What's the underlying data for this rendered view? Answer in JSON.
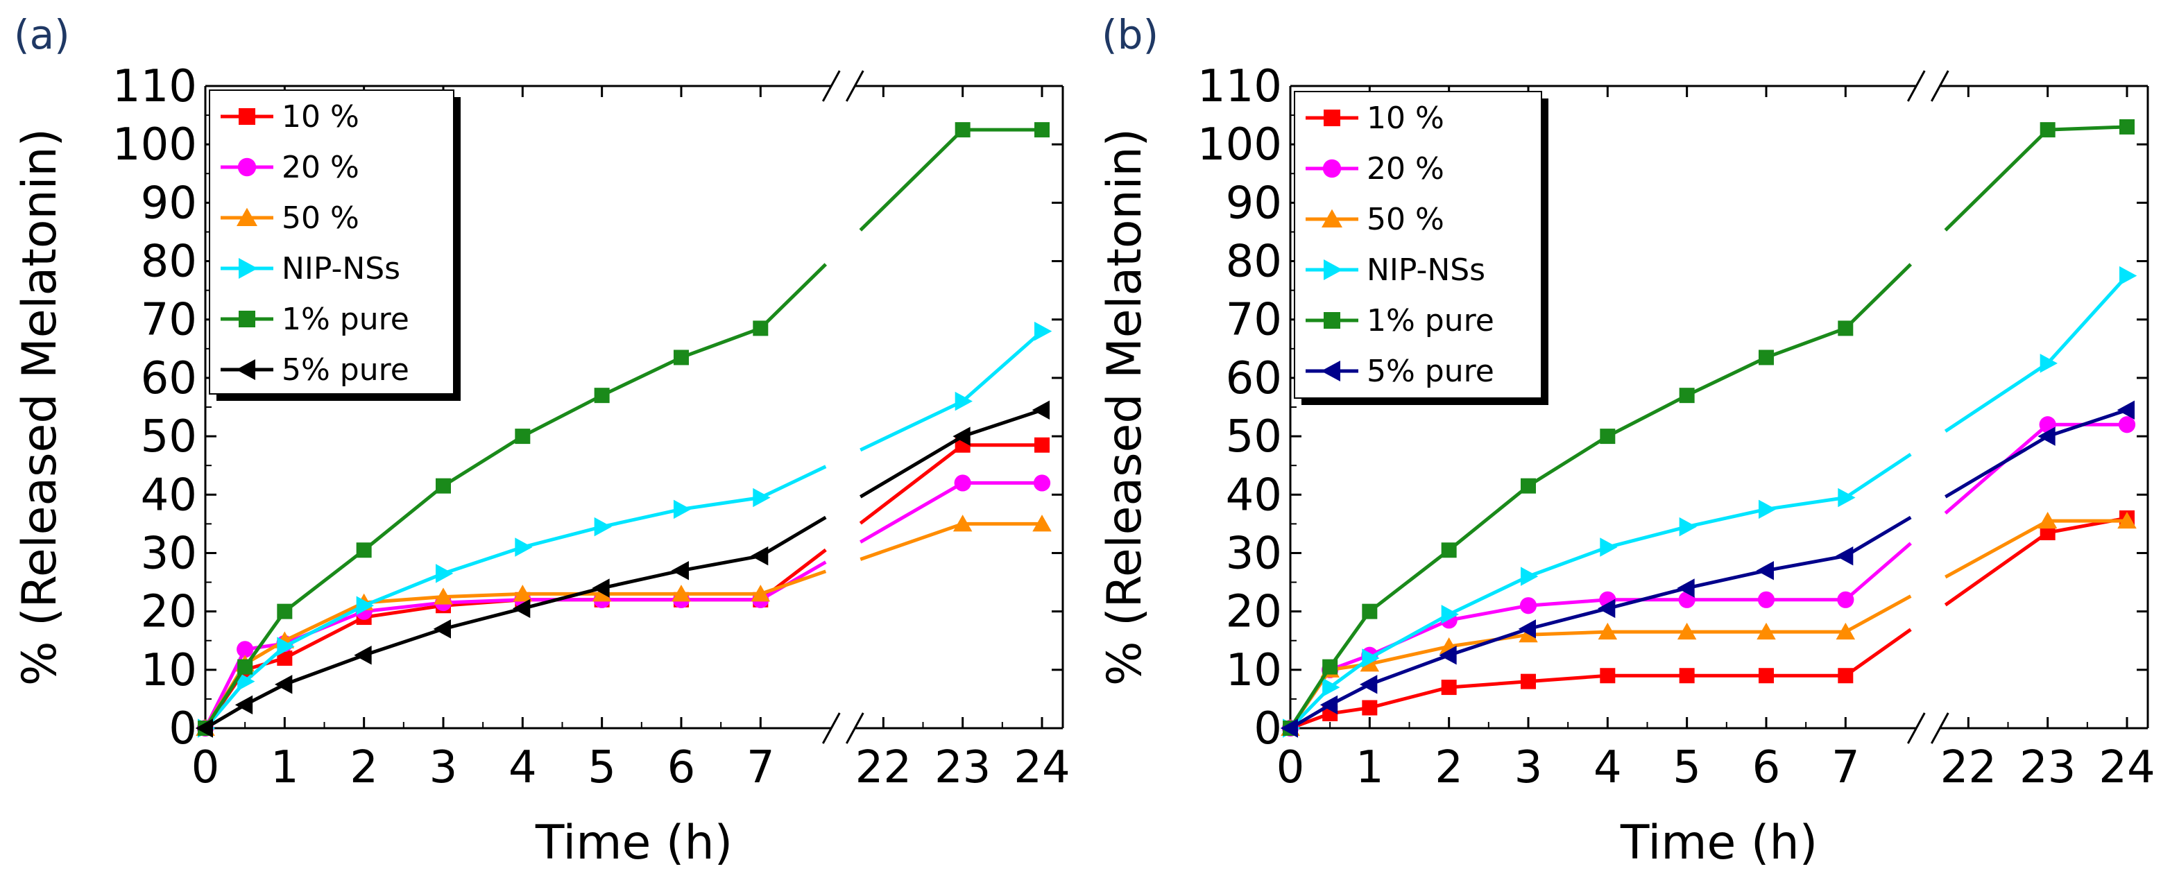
{
  "figure": {
    "colors": {
      "10 %": "#ff0000",
      "20 %": "#ff00ff",
      "50 %": "#ff8c00",
      "NIP-NSs": "#00e5ff",
      "1% pure": "#1a8a1a",
      "5% pure (a)": "#000000",
      "5% pure (b)": "#00008b"
    },
    "icons": {
      "10 %": "square-marker",
      "20 %": "circle-marker",
      "50 %": "triangle-up-marker",
      "NIP-NSs": "triangle-right-marker",
      "1% pure": "square-marker",
      "5% pure": "triangle-left-marker"
    }
  },
  "chart_data": [
    {
      "panel_label": "(a)",
      "type": "line",
      "xlabel": "Time (h)",
      "ylabel": "% (Released Melatonin)",
      "ylim": [
        0,
        110
      ],
      "yticks": [
        "0",
        "10",
        "20",
        "30",
        "40",
        "50",
        "60",
        "70",
        "80",
        "90",
        "100",
        "110"
      ],
      "xticks": [
        "0",
        "1",
        "2",
        "3",
        "4",
        "5",
        "6",
        "7",
        "22",
        "23",
        "24"
      ],
      "axis_break": "between 7 and 22 h",
      "legend": "top-left, boxed with shadow",
      "x": [
        0,
        0.5,
        1,
        2,
        3,
        4,
        5,
        6,
        7,
        23,
        24
      ],
      "series": [
        {
          "name": "10 %",
          "marker": "square",
          "values": [
            0,
            10,
            12,
            19,
            21,
            22,
            22,
            22,
            22,
            48.5,
            48.5
          ]
        },
        {
          "name": "20 %",
          "marker": "circle",
          "values": [
            0,
            13.5,
            14.5,
            20,
            21.5,
            22,
            22,
            22,
            22,
            42,
            42
          ]
        },
        {
          "name": "50 %",
          "marker": "triangle-up",
          "values": [
            0,
            11,
            15,
            21.5,
            22.5,
            23,
            23,
            23,
            23,
            35,
            35
          ]
        },
        {
          "name": "NIP-NSs",
          "marker": "triangle-right",
          "values": [
            0,
            8,
            14,
            21,
            26.5,
            31,
            34.5,
            37.5,
            39.5,
            56,
            68
          ]
        },
        {
          "name": "1% pure",
          "marker": "square",
          "values": [
            0,
            10.5,
            20,
            30.5,
            41.5,
            50,
            57,
            63.5,
            68.5,
            102.5,
            102.5
          ]
        },
        {
          "name": "5% pure",
          "marker": "triangle-left",
          "values": [
            0,
            4,
            7.5,
            12.5,
            17,
            20.5,
            24,
            27,
            29.5,
            50,
            54.5
          ]
        }
      ]
    },
    {
      "panel_label": "(b)",
      "type": "line",
      "xlabel": "Time (h)",
      "ylabel": "% (Released Melatonin)",
      "ylim": [
        0,
        110
      ],
      "yticks": [
        "0",
        "10",
        "20",
        "30",
        "40",
        "50",
        "60",
        "70",
        "80",
        "90",
        "100",
        "110"
      ],
      "xticks": [
        "0",
        "1",
        "2",
        "3",
        "4",
        "5",
        "6",
        "7",
        "22",
        "23",
        "24"
      ],
      "axis_break": "between 7 and 22 h",
      "legend": "top-left, boxed with shadow",
      "x": [
        0,
        0.5,
        1,
        2,
        3,
        4,
        5,
        6,
        7,
        23,
        24
      ],
      "series": [
        {
          "name": "10 %",
          "marker": "square",
          "values": [
            0,
            2.5,
            3.5,
            7,
            8,
            9,
            9,
            9,
            9,
            33.5,
            36
          ]
        },
        {
          "name": "20 %",
          "marker": "circle",
          "values": [
            0,
            10,
            12.5,
            18.5,
            21,
            22,
            22,
            22,
            22,
            52,
            52
          ]
        },
        {
          "name": "50 %",
          "marker": "triangle-up",
          "values": [
            0,
            10,
            11,
            14,
            16,
            16.5,
            16.5,
            16.5,
            16.5,
            35.5,
            35.5
          ]
        },
        {
          "name": "NIP-NSs",
          "marker": "triangle-right",
          "values": [
            0,
            7,
            12,
            19.5,
            26,
            31,
            34.5,
            37.5,
            39.5,
            62.5,
            77.5
          ]
        },
        {
          "name": "1% pure",
          "marker": "square",
          "values": [
            0,
            10.5,
            20,
            30.5,
            41.5,
            50,
            57,
            63.5,
            68.5,
            102.5,
            103
          ]
        },
        {
          "name": "5% pure",
          "marker": "triangle-left",
          "values": [
            0,
            4,
            7.5,
            12.5,
            17,
            20.5,
            24,
            27,
            29.5,
            50,
            54.5
          ]
        }
      ]
    }
  ]
}
